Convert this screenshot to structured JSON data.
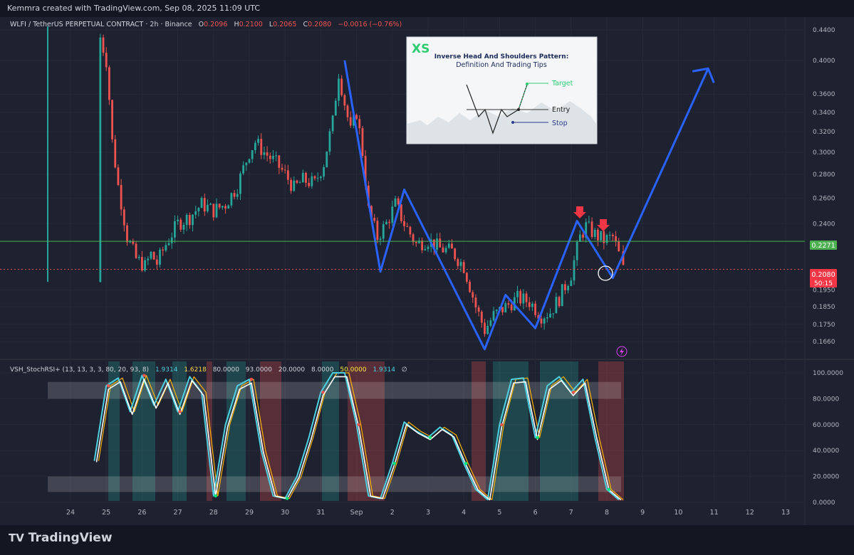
{
  "header": {
    "credit": "Kemmra created with TradingView.com, Sep 08, 2025 11:09 UTC"
  },
  "legend": {
    "symbol": "WLFI / TetherUS PERPETUAL CONTRACT · 2h · Binance",
    "o_label": "O",
    "o_value": "0.2096",
    "h_label": "H",
    "h_value": "0.2100",
    "l_label": "L",
    "l_value": "0.2065",
    "c_label": "C",
    "c_value": "0.2080",
    "change": "−0.0016 (−0.76%)"
  },
  "indicator_legend": {
    "name": "VSH_StochRSI+ (13, 13, 3, 3, 80, 20, 93, 8)",
    "values": [
      "1.9314",
      "1.6218",
      "80.0000",
      "93.0000",
      "20.0000",
      "8.0000",
      "50.0000",
      "1.9314"
    ],
    "value_colors": [
      "#4dd0e1",
      "#ffd54f",
      "#d1d4dc",
      "#d1d4dc",
      "#d1d4dc",
      "#d1d4dc",
      "#ffeb3b",
      "#4dd0e1"
    ],
    "suffix": "∅"
  },
  "inset": {
    "brand": "XS",
    "title_line1": "Inverse Head And Shoulders Pattern:",
    "title_line2": "Definition And Trading Tips",
    "target": "Target",
    "entry": "Entry",
    "stop": "Stop"
  },
  "price_labels": {
    "level_line": "0.2271",
    "current": "0.2080",
    "countdown": "50:15"
  },
  "footer": {
    "logo": "TradingView"
  },
  "colors": {
    "up": "#26a69a",
    "down": "#ef5350",
    "pattern_line": "#2962ff",
    "level_line": "#4caf50",
    "stoch_k": "#4dd0e1",
    "stoch_d": "#ffb300",
    "stoch_rsi": "#ffffff",
    "arrow": "#f23645"
  },
  "chart_data": [
    {
      "type": "line",
      "scale": "log",
      "ylim": [
        0.158,
        0.45
      ],
      "y_ticks": [
        "0.4400",
        "0.4000",
        "0.3600",
        "0.3400",
        "0.3200",
        "0.3000",
        "0.2800",
        "0.2600",
        "0.2400",
        "0.2271",
        "0.2080",
        "0.1950",
        "0.1850",
        "0.1750",
        "0.1660"
      ],
      "x_ticks": [
        "24",
        "25",
        "26",
        "27",
        "28",
        "29",
        "30",
        "31",
        "Sep",
        "2",
        "3",
        "4",
        "5",
        "6",
        "7",
        "8",
        "9",
        "10",
        "11",
        "12",
        "13"
      ],
      "approx_close": [
        [
          "Aug 24 18:00",
          0.2
        ],
        [
          "Aug 24 20:00",
          0.43
        ],
        [
          "Aug 25 00:00",
          0.4
        ],
        [
          "Aug 25 04:00",
          0.31
        ],
        [
          "Aug 25 08:00",
          0.27
        ],
        [
          "Aug 25 14:00",
          0.23
        ],
        [
          "Aug 25 20:00",
          0.215
        ],
        [
          "Aug 26 02:00",
          0.21
        ],
        [
          "Aug 26 06:00",
          0.218
        ],
        [
          "Aug 26 10:00",
          0.212
        ],
        [
          "Aug 26 16:00",
          0.225
        ],
        [
          "Aug 27 00:00",
          0.24
        ],
        [
          "Aug 27 08:00",
          0.245
        ],
        [
          "Aug 27 16:00",
          0.255
        ],
        [
          "Aug 28 00:00",
          0.25
        ],
        [
          "Aug 28 08:00",
          0.255
        ],
        [
          "Aug 28 16:00",
          0.27
        ],
        [
          "Aug 29 00:00",
          0.3
        ],
        [
          "Aug 29 04:00",
          0.31
        ],
        [
          "Aug 29 10:00",
          0.3
        ],
        [
          "Aug 29 18:00",
          0.29
        ],
        [
          "Aug 30 00:00",
          0.28
        ],
        [
          "Aug 30 06:00",
          0.268
        ],
        [
          "Aug 30 12:00",
          0.275
        ],
        [
          "Aug 30 20:00",
          0.272
        ],
        [
          "Aug 31 02:00",
          0.29
        ],
        [
          "Aug 31 08:00",
          0.33
        ],
        [
          "Aug 31 12:00",
          0.385
        ],
        [
          "Aug 31 16:00",
          0.35
        ],
        [
          "Aug 31 20:00",
          0.32
        ],
        [
          "Sep 1 00:00",
          0.34
        ],
        [
          "Sep 1 04:00",
          0.3
        ],
        [
          "Sep 1 08:00",
          0.25
        ],
        [
          "Sep 1 14:00",
          0.23
        ],
        [
          "Sep 1 20:00",
          0.24
        ],
        [
          "Sep 2 02:00",
          0.255
        ],
        [
          "Sep 2 08:00",
          0.24
        ],
        [
          "Sep 2 16:00",
          0.225
        ],
        [
          "Sep 3 00:00",
          0.228
        ],
        [
          "Sep 3 08:00",
          0.222
        ],
        [
          "Sep 3 16:00",
          0.22
        ],
        [
          "Sep 4 00:00",
          0.21
        ],
        [
          "Sep 4 08:00",
          0.185
        ],
        [
          "Sep 4 14:00",
          0.172
        ],
        [
          "Sep 4 20:00",
          0.18
        ],
        [
          "Sep 5 04:00",
          0.185
        ],
        [
          "Sep 5 12:00",
          0.19
        ],
        [
          "Sep 5 20:00",
          0.188
        ],
        [
          "Sep 6 04:00",
          0.18
        ],
        [
          "Sep 6 10:00",
          0.182
        ],
        [
          "Sep 6 16:00",
          0.19
        ],
        [
          "Sep 7 00:00",
          0.205
        ],
        [
          "Sep 7 06:00",
          0.23
        ],
        [
          "Sep 7 10:00",
          0.238
        ],
        [
          "Sep 7 16:00",
          0.232
        ],
        [
          "Sep 7 22:00",
          0.228
        ],
        [
          "Sep 8 04:00",
          0.23
        ],
        [
          "Sep 8 08:00",
          0.218
        ],
        [
          "Sep 8 11:00",
          0.208
        ]
      ],
      "horizontal_levels": [
        0.2271,
        0.208
      ],
      "pattern_polyline": [
        [
          "Aug 31 16:00",
          0.4
        ],
        [
          "Sep 1 16:00",
          0.2065
        ],
        [
          "Sep 2 08:00",
          0.267
        ],
        [
          "Sep 4 14:00",
          0.162
        ],
        [
          "Sep 5 04:00",
          0.192
        ],
        [
          "Sep 6 00:00",
          0.173
        ],
        [
          "Sep 7 04:00",
          0.242
        ],
        [
          "Sep 8 04:00",
          0.2025
        ],
        [
          "Sep 10 20:00",
          0.39
        ]
      ]
    },
    {
      "type": "line",
      "ylim": [
        0,
        100
      ],
      "y_ticks": [
        "100.0000",
        "80.0000",
        "60.0000",
        "40.0000",
        "20.0000",
        "0.0000"
      ],
      "bands": [
        [
          80,
          93
        ],
        [
          8,
          20
        ]
      ],
      "series": [
        {
          "values": [
            [
              "Aug 24 16:00",
              32
            ],
            [
              "Aug 25 00:00",
              90
            ],
            [
              "Aug 25 08:00",
              96
            ],
            [
              "Aug 25 16:00",
              70
            ],
            [
              "Aug 26 00:00",
              98
            ],
            [
              "Aug 26 08:00",
              75
            ],
            [
              "Aug 26 16:00",
              95
            ],
            [
              "Aug 27 00:00",
              70
            ],
            [
              "Aug 27 08:00",
              97
            ],
            [
              "Aug 27 16:00",
              85
            ],
            [
              "Aug 28 00:00",
              5
            ],
            [
              "Aug 28 08:00",
              60
            ],
            [
              "Aug 28 16:00",
              90
            ],
            [
              "Aug 29 00:00",
              95
            ],
            [
              "Aug 29 08:00",
              40
            ],
            [
              "Aug 29 16:00",
              5
            ],
            [
              "Aug 30 00:00",
              3
            ],
            [
              "Aug 30 08:00",
              20
            ],
            [
              "Aug 30 16:00",
              50
            ],
            [
              "Aug 31 00:00",
              85
            ],
            [
              "Aug 31 08:00",
              100
            ],
            [
              "Aug 31 16:00",
              100
            ],
            [
              "Sep 1 00:00",
              60
            ],
            [
              "Sep 1 08:00",
              5
            ],
            [
              "Sep 1 16:00",
              3
            ],
            [
              "Sep 2 00:00",
              30
            ],
            [
              "Sep 2 08:00",
              62
            ],
            [
              "Sep 2 16:00",
              55
            ],
            [
              "Sep 3 00:00",
              50
            ],
            [
              "Sep 3 08:00",
              58
            ],
            [
              "Sep 3 16:00",
              52
            ],
            [
              "Sep 4 00:00",
              30
            ],
            [
              "Sep 4 08:00",
              10
            ],
            [
              "Sep 4 16:00",
              2
            ],
            [
              "Sep 5 00:00",
              60
            ],
            [
              "Sep 5 08:00",
              95
            ],
            [
              "Sep 5 16:00",
              96
            ],
            [
              "Sep 6 00:00",
              50
            ],
            [
              "Sep 6 08:00",
              90
            ],
            [
              "Sep 6 16:00",
              97
            ],
            [
              "Sep 7 00:00",
              85
            ],
            [
              "Sep 7 08:00",
              95
            ],
            [
              "Sep 7 16:00",
              50
            ],
            [
              "Sep 8 00:00",
              10
            ],
            [
              "Sep 8 08:00",
              2
            ]
          ]
        }
      ]
    }
  ]
}
